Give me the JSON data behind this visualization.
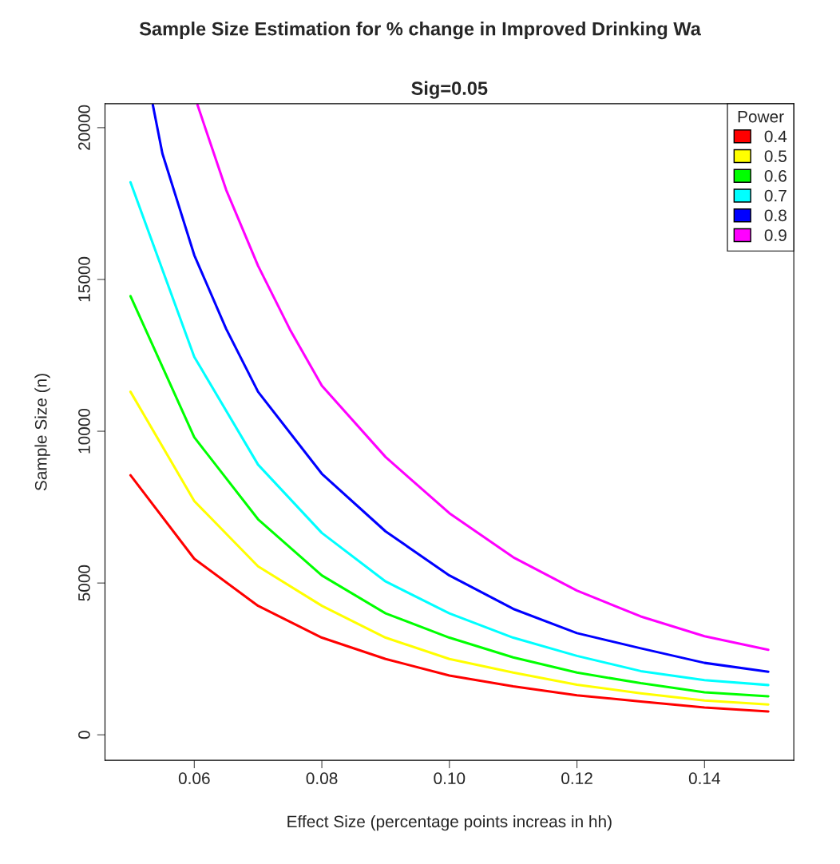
{
  "chart_data": {
    "type": "line",
    "title": "Sample Size Estimation for % change in Improved Drinking Wa",
    "subtitle": "Sig=0.05",
    "xlabel": "Effect Size (percentage points increas in hh)",
    "ylabel": "Sample Size (n)",
    "legend_title": "Power",
    "legend": "top right",
    "grid": false,
    "marker": "none",
    "line_style": "solid",
    "xlim": [
      0.046,
      0.154
    ],
    "xticks": [
      {
        "value": 0.06,
        "label": "0.06"
      },
      {
        "value": 0.08,
        "label": "0.08"
      },
      {
        "value": 0.1,
        "label": "0.10"
      },
      {
        "value": 0.12,
        "label": "0.12"
      },
      {
        "value": 0.14,
        "label": "0.14"
      }
    ],
    "ylim": [
      -840,
      20790
    ],
    "yticks": [
      0,
      5000,
      10000,
      15000,
      20000
    ],
    "series": [
      {
        "name": "0.4",
        "color": "#ff0000",
        "x": [
          0.05,
          0.06,
          0.07,
          0.08,
          0.09,
          0.1,
          0.11,
          0.12,
          0.13,
          0.14,
          0.15
        ],
        "values": [
          8550,
          5800,
          4250,
          3200,
          2500,
          1950,
          1600,
          1300,
          1100,
          900,
          770
        ]
      },
      {
        "name": "0.5",
        "color": "#ffff00",
        "x": [
          0.05,
          0.06,
          0.07,
          0.08,
          0.09,
          0.1,
          0.11,
          0.12,
          0.13,
          0.14,
          0.15
        ],
        "values": [
          11300,
          7700,
          5550,
          4250,
          3200,
          2500,
          2050,
          1650,
          1370,
          1130,
          1000
        ]
      },
      {
        "name": "0.6",
        "color": "#00ff00",
        "x": [
          0.05,
          0.06,
          0.07,
          0.08,
          0.09,
          0.1,
          0.11,
          0.12,
          0.13,
          0.14,
          0.15
        ],
        "values": [
          14450,
          9800,
          7100,
          5250,
          4000,
          3200,
          2550,
          2050,
          1700,
          1400,
          1270
        ]
      },
      {
        "name": "0.7",
        "color": "#00ffff",
        "x": [
          0.05,
          0.06,
          0.07,
          0.08,
          0.09,
          0.1,
          0.11,
          0.12,
          0.13,
          0.14,
          0.15
        ],
        "values": [
          18200,
          12450,
          8900,
          6650,
          5050,
          4000,
          3200,
          2600,
          2100,
          1800,
          1640
        ]
      },
      {
        "name": "0.8",
        "color": "#0000ff",
        "x": [
          0.0535,
          0.055,
          0.06,
          0.065,
          0.07,
          0.08,
          0.09,
          0.1,
          0.11,
          0.12,
          0.13,
          0.14,
          0.15
        ],
        "values": [
          20750,
          19150,
          15800,
          13370,
          11300,
          8600,
          6700,
          5250,
          4150,
          3350,
          2850,
          2370,
          2080
        ]
      },
      {
        "name": "0.9",
        "color": "#ff00ff",
        "x": [
          0.0605,
          0.065,
          0.07,
          0.075,
          0.08,
          0.09,
          0.1,
          0.11,
          0.12,
          0.13,
          0.14,
          0.15
        ],
        "values": [
          20750,
          17950,
          15450,
          13350,
          11500,
          9150,
          7300,
          5850,
          4750,
          3900,
          3250,
          2800
        ]
      }
    ]
  }
}
